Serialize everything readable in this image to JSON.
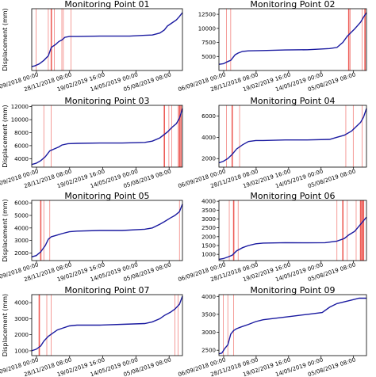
{
  "page": {
    "xlabel_hidden": ""
  },
  "chart_data": [
    {
      "type": "line",
      "title": "Monitoring Point 01",
      "ylabel": "Displacement (mm)",
      "x_ticklabels": [
        "06/09/2018 00:00",
        "28/11/2018 08:00",
        "19/02/2019 16:00",
        "14/05/2019 00:00",
        "05/08/2019 08:00"
      ],
      "x_ticklabels_shown": [
        "06/09/2018 00:00",
        "28/11/2018 08:00",
        "19/02/2019 16:00",
        "14/05/2019 00:00",
        "05/08/2019 08:00"
      ],
      "yticks": [],
      "ylim": [
        3500,
        19500
      ],
      "series_color": "#1a1aa0",
      "line_color": "#e8261e",
      "x": [
        0,
        0.02,
        0.05,
        0.08,
        0.11,
        0.13,
        0.16,
        0.18,
        0.2,
        0.22,
        0.25,
        0.3,
        0.35,
        0.45,
        0.55,
        0.65,
        0.75,
        0.8,
        0.85,
        0.88,
        0.9,
        0.93,
        0.96,
        0.98,
        1.0
      ],
      "y": [
        4500,
        4700,
        5200,
        6100,
        7300,
        9500,
        10300,
        11000,
        11400,
        12100,
        12300,
        12300,
        12350,
        12400,
        12400,
        12400,
        12600,
        12700,
        13200,
        14000,
        15000,
        15800,
        16600,
        17500,
        18500
      ],
      "vlines": [
        {
          "x": 0.03,
          "w": 0.6
        },
        {
          "x": 0.11,
          "w": 0.6
        },
        {
          "x": 0.13,
          "w": 1.6
        },
        {
          "x": 0.15,
          "w": 0.6
        },
        {
          "x": 0.2,
          "w": 0.6
        },
        {
          "x": 0.21,
          "w": 0.6
        },
        {
          "x": 0.26,
          "w": 0.6
        }
      ]
    },
    {
      "type": "line",
      "title": "Monitoring Point 02",
      "ylabel": "",
      "x_ticklabels_shown": [
        "06/09/2018 00:00",
        "28/11/2018 08:00",
        "19/02/2019 16:00",
        "14/05/2019 00:00",
        "05/08/2019 08:00"
      ],
      "yticks": [
        5000,
        7500,
        10000,
        12500
      ],
      "ylim": [
        2500,
        13500
      ],
      "series_color": "#1a1aa0",
      "line_color": "#e8261e",
      "x": [
        0,
        0.03,
        0.06,
        0.08,
        0.11,
        0.13,
        0.16,
        0.2,
        0.3,
        0.45,
        0.6,
        0.75,
        0.8,
        0.84,
        0.87,
        0.9,
        0.92,
        0.94,
        0.96,
        0.98,
        1.0
      ],
      "y": [
        3600,
        3700,
        4100,
        4300,
        5300,
        5600,
        5900,
        6000,
        6050,
        6150,
        6200,
        6400,
        6600,
        7500,
        8600,
        9400,
        9900,
        10500,
        11100,
        12000,
        12800
      ],
      "vlines": [
        {
          "x": 0.05,
          "w": 0.6
        },
        {
          "x": 0.08,
          "w": 0.6
        },
        {
          "x": 0.88,
          "w": 1.6
        },
        {
          "x": 0.89,
          "w": 0.6
        },
        {
          "x": 0.97,
          "w": 0.6
        },
        {
          "x": 0.99,
          "w": 1.6
        }
      ]
    },
    {
      "type": "line",
      "title": "Monitoring Point 03",
      "ylabel": "Displacement (mm)",
      "x_ticklabels_shown": [
        "06/09/2018 00:00",
        "28/11/2018 08:00",
        "19/02/2019 16:00",
        "14/05/2019 00:00",
        "05/08/2019 08:00"
      ],
      "yticks": [
        4000,
        6000,
        8000,
        10000,
        12000
      ],
      "ylim": [
        2700,
        12200
      ],
      "series_color": "#1a1aa0",
      "line_color": "#e8261e",
      "x": [
        0,
        0.03,
        0.06,
        0.09,
        0.12,
        0.15,
        0.18,
        0.2,
        0.24,
        0.3,
        0.45,
        0.6,
        0.75,
        0.8,
        0.85,
        0.9,
        0.93,
        0.96,
        0.98,
        1.0
      ],
      "y": [
        3100,
        3300,
        3700,
        4300,
        5200,
        5500,
        5800,
        6100,
        6300,
        6350,
        6400,
        6400,
        6500,
        6700,
        7200,
        8100,
        8800,
        9400,
        10200,
        11700
      ],
      "vlines": [
        {
          "x": 0.08,
          "w": 0.6
        },
        {
          "x": 0.13,
          "w": 0.6
        },
        {
          "x": 0.88,
          "w": 1.6
        },
        {
          "x": 0.91,
          "w": 0.6
        },
        {
          "x": 0.93,
          "w": 0.6
        },
        {
          "x": 0.97,
          "w": 0.6
        },
        {
          "x": 0.98,
          "w": 1.6
        },
        {
          "x": 0.99,
          "w": 1.6
        }
      ]
    },
    {
      "type": "line",
      "title": "Monitoring Point 04",
      "ylabel": "",
      "x_ticklabels_shown": [
        "06/09/2018 00:00",
        "28/11/2018 08:00",
        "19/02/2019 16:00",
        "14/05/2019 00:00",
        "05/08/2019 08:00"
      ],
      "yticks": [
        2000,
        4000,
        6000
      ],
      "ylim": [
        1200,
        7000
      ],
      "series_color": "#1a1aa0",
      "line_color": "#e8261e",
      "x": [
        0,
        0.03,
        0.06,
        0.09,
        0.12,
        0.16,
        0.2,
        0.25,
        0.3,
        0.45,
        0.6,
        0.75,
        0.8,
        0.85,
        0.9,
        0.93,
        0.96,
        0.98,
        1.0
      ],
      "y": [
        1600,
        1750,
        2000,
        2400,
        2900,
        3300,
        3600,
        3700,
        3700,
        3750,
        3750,
        3800,
        4000,
        4200,
        4600,
        5000,
        5400,
        5900,
        6700
      ],
      "vlines": [
        {
          "x": 0.05,
          "w": 0.6
        },
        {
          "x": 0.09,
          "w": 1.6
        },
        {
          "x": 0.14,
          "w": 0.6
        },
        {
          "x": 0.86,
          "w": 0.6
        },
        {
          "x": 0.91,
          "w": 0.6
        },
        {
          "x": 0.97,
          "w": 0.6
        }
      ]
    },
    {
      "type": "line",
      "title": "Monitoring Point 05",
      "ylabel": "Displacement (mm)",
      "x_ticklabels_shown": [
        "06/09/2018 00:00",
        "28/11/2018 08:00",
        "19/02/2019 16:00",
        "14/05/2019 00:00",
        "05/08/2019 08:00"
      ],
      "yticks": [
        2000,
        3000,
        4000,
        5000,
        6000
      ],
      "ylim": [
        1400,
        6200
      ],
      "series_color": "#1a1aa0",
      "line_color": "#e8261e",
      "x": [
        0,
        0.03,
        0.06,
        0.09,
        0.11,
        0.13,
        0.16,
        0.2,
        0.25,
        0.3,
        0.45,
        0.6,
        0.75,
        0.8,
        0.85,
        0.88,
        0.92,
        0.95,
        0.98,
        1.0
      ],
      "y": [
        1700,
        1800,
        2100,
        2600,
        3100,
        3300,
        3400,
        3550,
        3700,
        3750,
        3800,
        3800,
        3900,
        4000,
        4300,
        4500,
        4800,
        5000,
        5300,
        5900
      ],
      "vlines": [
        {
          "x": 0.06,
          "w": 1.6
        },
        {
          "x": 0.08,
          "w": 0.6
        },
        {
          "x": 0.12,
          "w": 0.6
        },
        {
          "x": 0.98,
          "w": 0.6
        }
      ]
    },
    {
      "type": "line",
      "title": "Monitoring Point 06",
      "ylabel": "",
      "x_ticklabels_shown": [
        "06/09/2018 00:00",
        "28/11/2018 08:00",
        "19/02/2019 16:00",
        "14/05/2019 00:00",
        "05/08/2019 08:00"
      ],
      "yticks": [
        1000,
        1500,
        2000,
        2500,
        3000,
        3500,
        4000
      ],
      "ylim": [
        650,
        4050
      ],
      "series_color": "#1a1aa0",
      "line_color": "#e8261e",
      "x": [
        0,
        0.03,
        0.06,
        0.09,
        0.12,
        0.16,
        0.2,
        0.25,
        0.3,
        0.45,
        0.6,
        0.72,
        0.8,
        0.85,
        0.88,
        0.92,
        0.95,
        0.98,
        1.0
      ],
      "y": [
        720,
        760,
        850,
        950,
        1200,
        1380,
        1500,
        1600,
        1640,
        1660,
        1650,
        1660,
        1750,
        1900,
        2100,
        2300,
        2600,
        2900,
        3100
      ],
      "vlines": [
        {
          "x": 0.07,
          "w": 0.6
        },
        {
          "x": 0.1,
          "w": 1.6
        },
        {
          "x": 0.13,
          "w": 0.6
        },
        {
          "x": 0.8,
          "w": 0.6
        },
        {
          "x": 0.84,
          "w": 1.6
        },
        {
          "x": 0.87,
          "w": 0.6
        },
        {
          "x": 0.93,
          "w": 0.6
        },
        {
          "x": 0.96,
          "w": 1.6
        },
        {
          "x": 0.97,
          "w": 1.6
        },
        {
          "x": 0.98,
          "w": 1.6
        }
      ]
    },
    {
      "type": "line",
      "title": "Monitoring Point 07",
      "ylabel": "Displacement (mm)",
      "x_ticklabels_shown": [
        "06/09/2018 00:00",
        "28/11/2018 08:00",
        "19/02/2019 16:00",
        "14/05/2019 00:00",
        "05/08/2019 08:00"
      ],
      "yticks": [
        1000,
        2000,
        3000,
        4000
      ],
      "ylim": [
        700,
        4500
      ],
      "series_color": "#1a1aa0",
      "line_color": "#e8261e",
      "x": [
        0,
        0.03,
        0.06,
        0.08,
        0.11,
        0.14,
        0.17,
        0.2,
        0.25,
        0.3,
        0.45,
        0.6,
        0.75,
        0.8,
        0.85,
        0.88,
        0.92,
        0.95,
        0.98,
        1.0
      ],
      "y": [
        1000,
        1100,
        1300,
        1600,
        1900,
        2100,
        2300,
        2400,
        2550,
        2600,
        2600,
        2650,
        2700,
        2800,
        3000,
        3200,
        3400,
        3600,
        3900,
        4400
      ],
      "vlines": [
        {
          "x": 0.05,
          "w": 1.6
        },
        {
          "x": 0.1,
          "w": 0.6
        },
        {
          "x": 0.13,
          "w": 0.6
        },
        {
          "x": 0.95,
          "w": 0.6
        },
        {
          "x": 0.97,
          "w": 0.6
        }
      ]
    },
    {
      "type": "line",
      "title": "Monitoring Point 09",
      "ylabel": "",
      "x_ticklabels_shown": [
        "06/09/2018 00:00",
        "28/11/2018 08:00",
        "19/02/2019 16:00",
        "14/05/2019 00:00",
        "05/08/2019 08:00"
      ],
      "yticks": [
        2500,
        3000,
        3500,
        4000
      ],
      "ylim": [
        2350,
        4050
      ],
      "series_color": "#1a1aa0",
      "line_color": "#e8261e",
      "x": [
        0,
        0.02,
        0.04,
        0.06,
        0.08,
        0.1,
        0.12,
        0.15,
        0.2,
        0.25,
        0.3,
        0.4,
        0.5,
        0.6,
        0.7,
        0.75,
        0.8,
        0.85,
        0.9,
        0.95,
        1.0
      ],
      "y": [
        2400,
        2420,
        2550,
        2650,
        2950,
        3050,
        3100,
        3150,
        3220,
        3300,
        3350,
        3400,
        3450,
        3500,
        3550,
        3700,
        3800,
        3850,
        3900,
        3950,
        3950
      ],
      "vlines": [
        {
          "x": 0.03,
          "w": 0.6
        },
        {
          "x": 0.06,
          "w": 0.6
        },
        {
          "x": 0.1,
          "w": 0.6
        }
      ]
    }
  ]
}
